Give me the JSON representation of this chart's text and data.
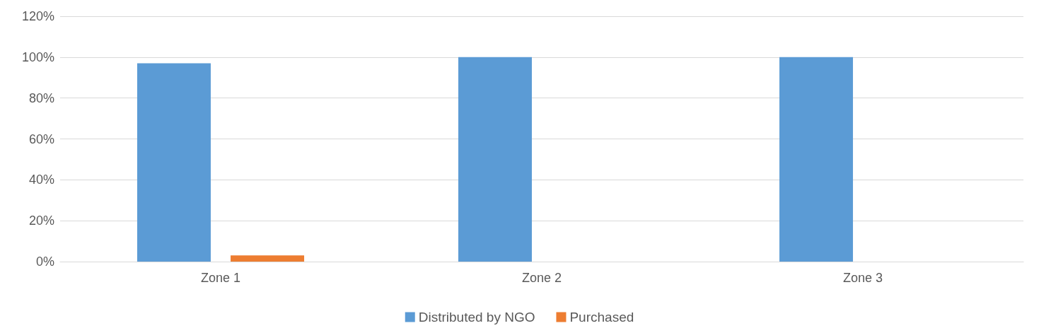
{
  "chart_data": {
    "type": "bar",
    "categories": [
      "Zone 1",
      "Zone 2",
      "Zone 3"
    ],
    "series": [
      {
        "name": "Distributed by NGO",
        "color": "#5b9bd5",
        "values": [
          97,
          100,
          100
        ]
      },
      {
        "name": "Purchased",
        "color": "#ed7d31",
        "values": [
          3,
          0,
          0
        ]
      }
    ],
    "ylim": [
      0,
      120
    ],
    "yticks": [
      {
        "value": 0,
        "label": "0%"
      },
      {
        "value": 20,
        "label": "20%"
      },
      {
        "value": 40,
        "label": "40%"
      },
      {
        "value": 60,
        "label": "60%"
      },
      {
        "value": 80,
        "label": "80%"
      },
      {
        "value": 100,
        "label": "100%"
      },
      {
        "value": 120,
        "label": "120%"
      }
    ],
    "grid": "y",
    "legend": "bottom"
  }
}
